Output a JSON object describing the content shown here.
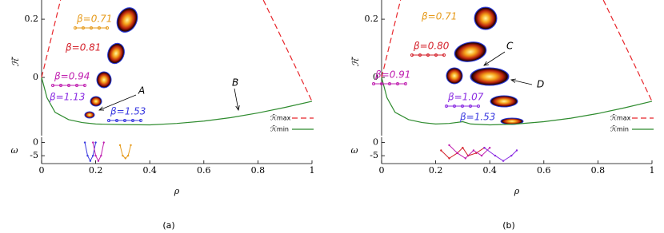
{
  "chart_data": [
    {
      "type": "line",
      "label": "(a)",
      "xlabel": "ρ",
      "ylabel": "ℋ̃",
      "xlim": [
        0,
        1
      ],
      "ylim": [
        -0.2,
        0.266
      ],
      "xticks": [
        0,
        0.2,
        0.4,
        0.6,
        0.8,
        1
      ],
      "yticks": [
        0,
        0.2
      ],
      "series": [
        {
          "name": "ℋ̃max",
          "color": "#e8262b",
          "dashed": true,
          "x": [
            0,
            0.07,
            null,
            0.82,
            1
          ],
          "values": [
            0,
            0.266,
            null,
            0.266,
            -0.082
          ]
        },
        {
          "name": "ℋ̃min",
          "color": "#2e8b2e",
          "dashed": false,
          "x": [
            0,
            0.02,
            0.05,
            0.1,
            0.15,
            0.2,
            0.3,
            0.4,
            0.5,
            0.6,
            0.7,
            0.8,
            0.9,
            1
          ],
          "values": [
            0,
            -0.07,
            -0.12,
            -0.145,
            -0.155,
            -0.16,
            -0.162,
            -0.163,
            -0.158,
            -0.15,
            -0.138,
            -0.122,
            -0.103,
            -0.082
          ]
        }
      ],
      "annotations": [
        {
          "text": "β=0.71",
          "color": "#e69a1a"
        },
        {
          "text": "β=0.81",
          "color": "#d4202a"
        },
        {
          "text": "β=0.94",
          "color": "#c020b0"
        },
        {
          "text": "β=1.13",
          "color": "#8a2be2"
        },
        {
          "text": "β=1.53",
          "color": "#3a3ae0"
        },
        {
          "text": "A",
          "color": "#000000"
        },
        {
          "text": "B",
          "color": "#000000"
        }
      ],
      "inset": {
        "ylabel": "ω",
        "ylim": [
          -8,
          2
        ],
        "yticks": [
          0,
          -5
        ],
        "series": [
          {
            "color": "#3a3ae0",
            "x": [
              0.16,
              0.17,
              0.18,
              0.19,
              0.2
            ],
            "values": [
              0,
              -5,
              -7,
              -5,
              0
            ]
          },
          {
            "color": "#c020b0",
            "x": [
              0.19,
              0.2,
              0.21,
              0.22,
              0.23
            ],
            "values": [
              0,
              -5,
              -7,
              -5,
              0
            ]
          },
          {
            "color": "#e69a1a",
            "x": [
              0.29,
              0.3,
              0.31,
              0.32,
              0.33
            ],
            "values": [
              -1,
              -5,
              -6,
              -5,
              -1
            ]
          }
        ]
      }
    },
    {
      "type": "line",
      "label": "(b)",
      "xlabel": "ρ",
      "ylabel": "ℋ̃",
      "xlim": [
        0,
        1
      ],
      "ylim": [
        -0.2,
        0.266
      ],
      "xticks": [
        0,
        0.2,
        0.4,
        0.6,
        0.8,
        1
      ],
      "yticks": [
        0,
        0.2
      ],
      "series": [
        {
          "name": "ℋ̃max",
          "color": "#e8262b",
          "dashed": true,
          "x": [
            0,
            0.07,
            null,
            0.82,
            1
          ],
          "values": [
            0,
            0.266,
            null,
            0.266,
            -0.082
          ]
        },
        {
          "name": "ℋ̃min",
          "color": "#2e8b2e",
          "dashed": false,
          "x": [
            0,
            0.02,
            0.05,
            0.1,
            0.15,
            0.2,
            0.25,
            0.3,
            0.33,
            0.4,
            0.5,
            0.6,
            0.7,
            0.8,
            0.9,
            1
          ],
          "values": [
            0,
            -0.07,
            -0.12,
            -0.145,
            -0.155,
            -0.16,
            -0.158,
            -0.152,
            -0.16,
            -0.163,
            -0.16,
            -0.152,
            -0.14,
            -0.124,
            -0.104,
            -0.082
          ]
        }
      ],
      "annotations": [
        {
          "text": "β=0.71",
          "color": "#e69a1a"
        },
        {
          "text": "β=0.80",
          "color": "#d4202a"
        },
        {
          "text": "β=0.91",
          "color": "#c020b0"
        },
        {
          "text": "β=1.07",
          "color": "#8a2be2"
        },
        {
          "text": "β=1.53",
          "color": "#3a3ae0"
        },
        {
          "text": "C",
          "color": "#000000"
        },
        {
          "text": "D",
          "color": "#000000"
        }
      ],
      "inset": {
        "ylabel": "ω",
        "ylim": [
          -8,
          2
        ],
        "yticks": [
          0,
          -5
        ],
        "series": [
          {
            "color": "#d4202a",
            "x": [
              0.22,
              0.25,
              0.28,
              0.3,
              0.32,
              0.35,
              0.38
            ],
            "values": [
              -3,
              -6,
              -4,
              -2,
              -5,
              -4,
              -2
            ]
          },
          {
            "color": "#c020b0",
            "x": [
              0.25,
              0.28,
              0.31,
              0.34,
              0.37,
              0.4
            ],
            "values": [
              -1,
              -4,
              -6,
              -3,
              -5,
              -2
            ]
          },
          {
            "color": "#8a2be2",
            "x": [
              0.38,
              0.42,
              0.45,
              0.48,
              0.5
            ],
            "values": [
              -2,
              -5,
              -7,
              -5,
              -3
            ]
          }
        ]
      }
    }
  ]
}
